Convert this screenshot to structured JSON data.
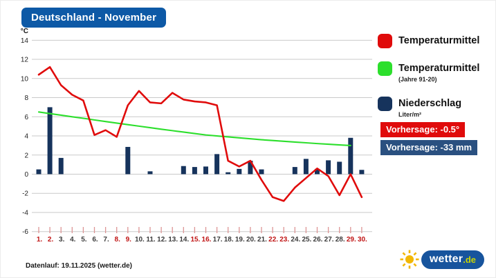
{
  "title": "Deutschland - November",
  "colors": {
    "title_bg": "#0d59a6",
    "temp_line": "#e00b0b",
    "climate_line": "#2cdf2c",
    "precip_bar": "#16335c",
    "badge_temp_bg": "#e00b0b",
    "badge_precip_bg": "#2a5080",
    "grid": "#c9c9c9",
    "tick": "#dd9494",
    "weekend_label": "#c01414",
    "weekday_label": "#3c3c3c",
    "axis_text": "#222222",
    "sun": "#f2b705",
    "logo_pill": "#17549d",
    "logo_tld": "#c9d402"
  },
  "chart_data": {
    "type": "composite",
    "title": "Deutschland - November",
    "x_labels": [
      "1.",
      "2.",
      "3.",
      "4.",
      "5.",
      "6.",
      "7.",
      "8.",
      "9.",
      "10.",
      "11.",
      "12.",
      "13.",
      "14.",
      "15.",
      "16.",
      "17.",
      "18.",
      "19.",
      "20.",
      "21.",
      "22.",
      "23.",
      "24.",
      "25.",
      "26.",
      "27.",
      "28.",
      "29.",
      "30."
    ],
    "weekend_days": [
      1,
      2,
      8,
      9,
      15,
      16,
      22,
      23,
      29,
      30
    ],
    "y_unit": "°C",
    "y_ticks": [
      14,
      12,
      10,
      8,
      6,
      4,
      2,
      0,
      -2,
      -4,
      -6
    ],
    "ylim": [
      -6,
      14
    ],
    "grid": true,
    "legend_position": "right",
    "series": [
      {
        "name": "Temperaturmittel",
        "type": "line",
        "values": [
          10.4,
          11.2,
          9.3,
          8.3,
          7.7,
          4.1,
          4.6,
          3.9,
          7.2,
          8.7,
          7.5,
          7.4,
          8.5,
          7.8,
          7.6,
          7.5,
          7.2,
          1.4,
          0.8,
          1.4,
          -0.6,
          -2.4,
          -2.8,
          -1.4,
          -0.4,
          0.6,
          -0.2,
          -2.2,
          0,
          -2.4
        ]
      },
      {
        "name": "Temperaturmittel (Jahre 91-20)",
        "type": "line",
        "values": [
          6.5,
          6.33,
          6.17,
          6.0,
          5.84,
          5.67,
          5.5,
          5.34,
          5.18,
          5.02,
          4.86,
          4.7,
          4.55,
          4.4,
          4.25,
          4.1,
          4.0,
          3.9,
          3.8,
          3.7,
          3.6,
          3.52,
          3.44,
          3.36,
          3.28,
          3.2,
          3.13,
          3.06,
          3.0,
          null
        ]
      },
      {
        "name": "Niederschlag (Liter/m²)",
        "type": "bar",
        "values": [
          0.5,
          7,
          1.7,
          0,
          0,
          0,
          0,
          0,
          2.85,
          0,
          0.3,
          0,
          0,
          0.85,
          0.75,
          0.8,
          2.1,
          0.2,
          0.55,
          1.4,
          0.5,
          0,
          0,
          0.75,
          1.6,
          0.55,
          1.45,
          1.3,
          3.8,
          0.45
        ]
      }
    ]
  },
  "legend": {
    "items": [
      {
        "label": "Temperaturmittel",
        "sublabel": "",
        "color": "#e00b0b"
      },
      {
        "label": "Temperaturmittel",
        "sublabel": "(Jahre 91-20)",
        "color": "#2cdf2c"
      },
      {
        "label": "Niederschlag",
        "sublabel": "Liter/m²",
        "color": "#16335c"
      }
    ]
  },
  "badges": {
    "temperature": "Vorhersage: -0.5°",
    "precipitation": "Vorhersage: -33 mm"
  },
  "footer": {
    "datenlauf": "Datenlauf: 19.11.2025 (wetter.de)"
  },
  "logo": {
    "text": "wetter",
    "tld": ".de"
  }
}
